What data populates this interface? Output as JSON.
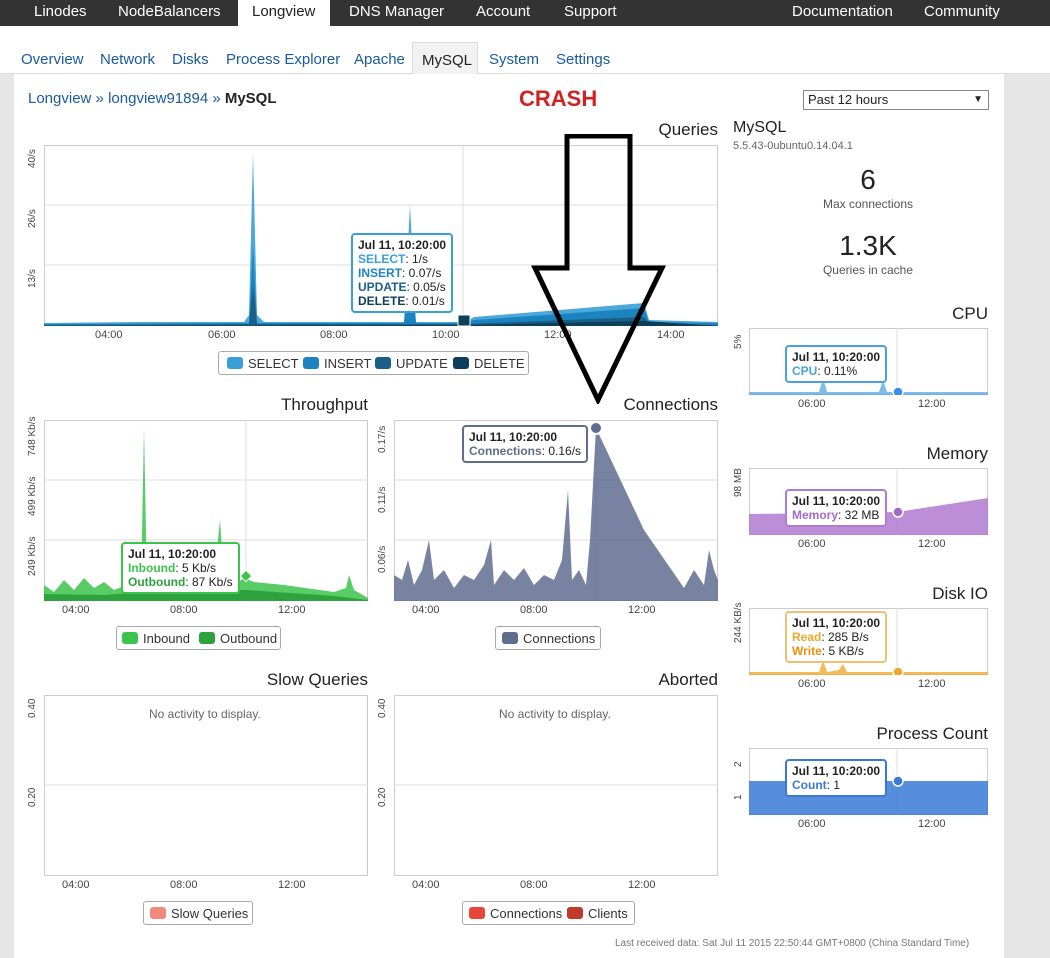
{
  "topnav": {
    "items": [
      {
        "label": "Linodes"
      },
      {
        "label": "NodeBalancers"
      },
      {
        "label": "Longview"
      },
      {
        "label": "DNS Manager"
      },
      {
        "label": "Account"
      },
      {
        "label": "Support"
      },
      {
        "label": "Documentation"
      },
      {
        "label": "Community"
      }
    ]
  },
  "subnav": {
    "items": [
      {
        "label": "Overview"
      },
      {
        "label": "Network"
      },
      {
        "label": "Disks"
      },
      {
        "label": "Process Explorer"
      },
      {
        "label": "Apache"
      },
      {
        "label": "MySQL"
      },
      {
        "label": "System"
      },
      {
        "label": "Settings"
      }
    ]
  },
  "breadcrumb": {
    "root": "Longview",
    "sep1": " » ",
    "host": "longview91894",
    "sep2": " » ",
    "current": "MySQL"
  },
  "annotation": {
    "text": "CRASH",
    "color": "#d32020"
  },
  "range_select": {
    "value": "Past 12 hours"
  },
  "queries": {
    "title": "Queries",
    "yticks": [
      "40/s",
      "26/s",
      "13/s"
    ],
    "xticks": [
      "04:00",
      "06:00",
      "08:00",
      "10:00",
      "12:00",
      "14:00"
    ],
    "legend": [
      {
        "label": "SELECT",
        "color": "#3a9fd6"
      },
      {
        "label": "INSERT",
        "color": "#1b84c0"
      },
      {
        "label": "UPDATE",
        "color": "#1b5f86"
      },
      {
        "label": "DELETE",
        "color": "#0d3f5a"
      }
    ],
    "tooltip": {
      "time": "Jul 11, 10:20:00",
      "rows": [
        {
          "k": "SELECT",
          "v": ": 1/s"
        },
        {
          "k": "INSERT",
          "v": ": 0.07/s"
        },
        {
          "k": "UPDATE",
          "v": ": 0.05/s"
        },
        {
          "k": "DELETE",
          "v": ": 0.01/s"
        }
      ]
    }
  },
  "throughput": {
    "title": "Throughput",
    "yticks": [
      "748 Kb/s",
      "499 Kb/s",
      "249 Kb/s"
    ],
    "xticks": [
      "04:00",
      "08:00",
      "12:00"
    ],
    "legend": [
      {
        "label": "Inbound",
        "color": "#3cc34b"
      },
      {
        "label": "Outbound",
        "color": "#2ea23c"
      }
    ],
    "tooltip": {
      "time": "Jul 11, 10:20:00",
      "rows": [
        {
          "k": "Inbound",
          "v": ": 5 Kb/s"
        },
        {
          "k": "Outbound",
          "v": ": 87 Kb/s"
        }
      ]
    }
  },
  "connections": {
    "title": "Connections",
    "yticks": [
      "0.17/s",
      "0.11/s",
      "0.06/s"
    ],
    "xticks": [
      "04:00",
      "08:00",
      "12:00"
    ],
    "legend": [
      {
        "label": "Connections",
        "color": "#5f6d8f"
      }
    ],
    "tooltip": {
      "time": "Jul 11, 10:20:00",
      "rows": [
        {
          "k": "Connections",
          "v": ": 0.16/s"
        }
      ]
    }
  },
  "slow": {
    "title": "Slow Queries",
    "yticks": [
      "0.40",
      "0.20"
    ],
    "xticks": [
      "04:00",
      "08:00",
      "12:00"
    ],
    "empty": "No activity to display.",
    "legend": [
      {
        "label": "Slow Queries",
        "color": "#f08a80"
      }
    ]
  },
  "aborted": {
    "title": "Aborted",
    "yticks": [
      "0.40",
      "0.20"
    ],
    "xticks": [
      "04:00",
      "08:00",
      "12:00"
    ],
    "empty": "No activity to display.",
    "legend": [
      {
        "label": "Connections",
        "color": "#e8463a"
      },
      {
        "label": "Clients",
        "color": "#c0392b"
      }
    ]
  },
  "side": {
    "title": "MySQL",
    "version": "5.5.43-0ubuntu0.14.04.1",
    "max_conn": "6",
    "max_conn_label": "Max connections",
    "qcache": "1.3K",
    "qcache_label": "Queries in cache",
    "cpu": {
      "title": "CPU",
      "ytick": "5%",
      "xticks": [
        "06:00",
        "12:00"
      ],
      "time": "Jul 11, 10:20:00",
      "k": "CPU",
      "v": ": 0.11%"
    },
    "memory": {
      "title": "Memory",
      "ytick": "98 MB",
      "xticks": [
        "06:00",
        "12:00"
      ],
      "time": "Jul 11, 10:20:00",
      "k": "Memory",
      "v": ": 32 MB"
    },
    "disk": {
      "title": "Disk IO",
      "ytick": "244 KB/s",
      "xticks": [
        "06:00",
        "12:00"
      ],
      "time": "Jul 11, 10:20:00",
      "rows": [
        {
          "k": "Read",
          "v": ": 285 B/s"
        },
        {
          "k": "Write",
          "v": ": 5 KB/s"
        }
      ]
    },
    "proc": {
      "title": "Process Count",
      "yticks": [
        "2",
        "1"
      ],
      "xticks": [
        "06:00",
        "12:00"
      ],
      "time": "Jul 11, 10:20:00",
      "k": "Count",
      "v": ": 1"
    }
  },
  "footer": "Last received data: Sat Jul 11 2015 22:50:44 GMT+0800 (China Standard Time)"
}
